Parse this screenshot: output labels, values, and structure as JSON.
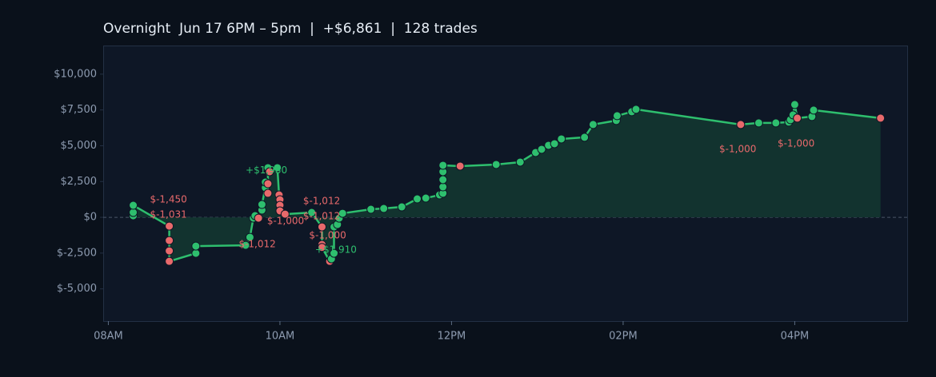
{
  "chart_data": {
    "type": "line",
    "title": "Overnight  Jun 17 6PM – 5pm  |  +$6,861  |  128 trades",
    "xlim": [
      7.94,
      17.32
    ],
    "ylim": [
      -7250,
      12000
    ],
    "xticks": [
      {
        "value": 8,
        "label": "08AM"
      },
      {
        "value": 10,
        "label": "10AM"
      },
      {
        "value": 12,
        "label": "12PM"
      },
      {
        "value": 14,
        "label": "02PM"
      },
      {
        "value": 16,
        "label": "04PM"
      }
    ],
    "yticks": [
      {
        "value": -5000,
        "label": "$-5,000"
      },
      {
        "value": -2500,
        "label": "$-2,500"
      },
      {
        "value": 0,
        "label": "$0"
      },
      {
        "value": 2500,
        "label": "$2,500"
      },
      {
        "value": 5000,
        "label": "$5,000"
      },
      {
        "value": 7500,
        "label": "$7,500"
      },
      {
        "value": 10000,
        "label": "$10,000"
      }
    ],
    "line_color": "#2ebf6e",
    "area_color": "#12332f",
    "win_color": "#2ebf6e",
    "loss_color": "#e8696b",
    "x": [
      8.29,
      8.29,
      8.29,
      8.71,
      8.71,
      8.71,
      8.71,
      9.02,
      9.02,
      9.6,
      9.65,
      9.69,
      9.71,
      9.75,
      9.79,
      9.79,
      9.83,
      9.83,
      9.86,
      9.86,
      9.86,
      9.88,
      9.97,
      9.99,
      10.0,
      10.0,
      10.0,
      10.06,
      10.37,
      10.49,
      10.49,
      10.49,
      10.58,
      10.6,
      10.63,
      10.63,
      10.67,
      10.69,
      10.73,
      11.06,
      11.21,
      11.42,
      11.6,
      11.7,
      11.86,
      11.9,
      11.9,
      11.9,
      11.9,
      11.9,
      12.1,
      12.52,
      12.8,
      12.98,
      13.05,
      13.13,
      13.2,
      13.28,
      13.55,
      13.65,
      13.92,
      13.93,
      14.1,
      14.15,
      15.37,
      15.58,
      15.78,
      15.93,
      15.95,
      15.98,
      16.0,
      16.03,
      16.2,
      16.22,
      17.0
    ],
    "values": [
      110,
      335,
      838,
      -615,
      -1620,
      -2346,
      -3073,
      -2514,
      -2011,
      -1955,
      -1397,
      -56,
      112,
      -56,
      503,
      894,
      2067,
      2458,
      2346,
      1676,
      3464,
      3184,
      3464,
      1566,
      1229,
      838,
      447,
      223,
      335,
      -671,
      -1900,
      -2100,
      -3073,
      -2905,
      -2514,
      -671,
      -503,
      -56,
      279,
      559,
      615,
      726,
      1285,
      1341,
      1564,
      1676,
      2123,
      2626,
      3184,
      3631,
      3576,
      3687,
      3855,
      4525,
      4748,
      5028,
      5140,
      5475,
      5587,
      6480,
      6760,
      7095,
      7374,
      7542,
      6480,
      6592,
      6592,
      6648,
      6816,
      7151,
      7877,
      6927,
      7039,
      7486,
      6927
    ],
    "annotations": [
      {
        "text": "$-1,450",
        "x": 8.485,
        "y": 1230,
        "color": "#e8696b"
      },
      {
        "text": "$-1,031",
        "x": 8.485,
        "y": 170,
        "color": "#e8696b"
      },
      {
        "text": "+$1,980",
        "x": 9.6,
        "y": 3270,
        "color": "#2ebf6e"
      },
      {
        "text": "$-1,000",
        "x": 9.85,
        "y": -280,
        "color": "#e8696b"
      },
      {
        "text": "$-1,012",
        "x": 9.52,
        "y": -1900,
        "color": "#e8696b"
      },
      {
        "text": "$-1,012",
        "x": 10.27,
        "y": 1120,
        "color": "#e8696b"
      },
      {
        "text": "$-1,012",
        "x": 10.27,
        "y": 60,
        "color": "#e8696b"
      },
      {
        "text": "$-1,000",
        "x": 10.34,
        "y": -1290,
        "color": "#e8696b"
      },
      {
        "text": "+$1,910",
        "x": 10.41,
        "y": -2290,
        "color": "#2ebf6e"
      },
      {
        "text": "$-1,000",
        "x": 15.12,
        "y": 4750,
        "color": "#e8696b"
      },
      {
        "text": "$-1,000",
        "x": 15.8,
        "y": 5140,
        "color": "#e8696b"
      }
    ]
  }
}
